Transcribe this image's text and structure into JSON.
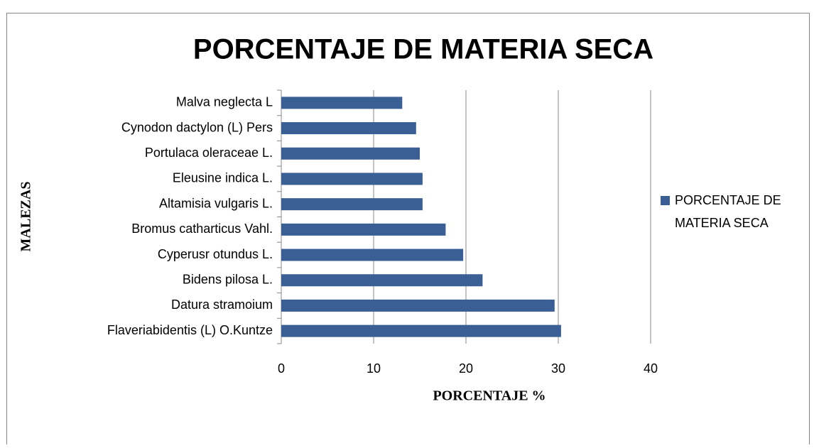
{
  "chart_data": {
    "type": "bar",
    "orientation": "horizontal",
    "title": "PORCENTAJE DE MATERIA SECA",
    "x_label": "PORCENTAJE %",
    "y_label": "MALEZAS",
    "categories": [
      "Flaveriabidentis (L) O.Kuntze",
      "Datura stramoium",
      "Bidens pilosa L.",
      "Cyperusr otundus L.",
      "Bromus catharticus Vahl.",
      "Altamisia vulgaris L.",
      "Eleusine indica L.",
      "Portulaca oleraceae L.",
      "Cynodon dactylon (L) Pers",
      "Malva neglecta L"
    ],
    "series": [
      {
        "name": "PORCENTAJE DE MATERIA SECA",
        "color": "#3a5f95",
        "values": [
          30.3,
          29.6,
          21.8,
          19.7,
          17.8,
          15.3,
          15.3,
          15.0,
          14.6,
          13.1
        ]
      }
    ],
    "xlim": [
      0,
      40
    ],
    "xticks": [
      0,
      10,
      20,
      30,
      40
    ],
    "grid": true,
    "legend": "right"
  }
}
